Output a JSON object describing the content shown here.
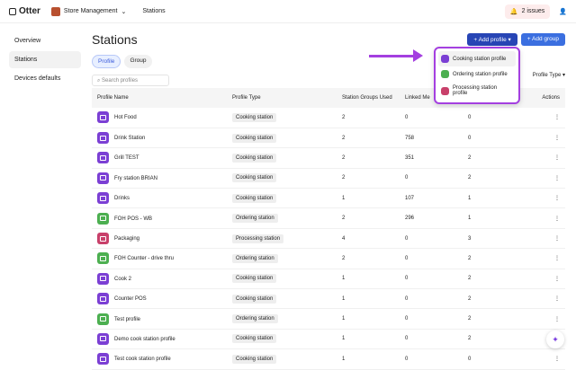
{
  "app": {
    "name": "Otter",
    "store": "Store Management",
    "breadcrumb": "Stations",
    "issues": "2 issues"
  },
  "sidebar": {
    "items": [
      {
        "label": "Overview"
      },
      {
        "label": "Stations"
      },
      {
        "label": "Devices defaults"
      }
    ]
  },
  "page": {
    "title": "Stations",
    "add_profile": "+ Add profile ▾",
    "add_group": "+ Add group",
    "tabs": [
      "Profile",
      "Group"
    ],
    "search_placeholder": "Search profiles",
    "filter": "Profile Type ▾"
  },
  "table": {
    "headers": [
      "Profile Name",
      "Profile Type",
      "Station Groups Used",
      "Linked Me",
      "",
      "Actions"
    ],
    "rows": [
      [
        "Hot Food",
        "Cooking station",
        "2",
        "0",
        "0"
      ],
      [
        "Drink Station",
        "Cooking station",
        "2",
        "758",
        "0"
      ],
      [
        "Grill TEST",
        "Cooking station",
        "2",
        "351",
        "2"
      ],
      [
        "Fry station BRIAN",
        "Cooking station",
        "2",
        "0",
        "2"
      ],
      [
        "Drinks",
        "Cooking station",
        "1",
        "107",
        "1"
      ],
      [
        "FOH POS - WB",
        "Ordering station",
        "2",
        "296",
        "1"
      ],
      [
        "Packaging",
        "Processing station",
        "4",
        "0",
        "3"
      ],
      [
        "FOH Counter - drive thru",
        "Ordering station",
        "2",
        "0",
        "2"
      ],
      [
        "Cook 2",
        "Cooking station",
        "1",
        "0",
        "2"
      ],
      [
        "Counter POS",
        "Cooking station",
        "1",
        "0",
        "2"
      ],
      [
        "Test profile",
        "Ordering station",
        "1",
        "0",
        "2"
      ],
      [
        "Demo cook station profile",
        "Cooking station",
        "1",
        "0",
        "2"
      ],
      [
        "Test cook station profile",
        "Cooking station",
        "1",
        "0",
        "0"
      ]
    ]
  },
  "menu": {
    "items": [
      "Cooking station profile",
      "Ordering station profile",
      "Processing station profile"
    ]
  },
  "colors": {
    "Cooking station": "#7b3fd4",
    "Ordering station": "#4caf50",
    "Processing station": "#c8406a",
    "primary": "#2745b5",
    "accent": "#3b6fe0",
    "highlight": "#a43fe0"
  }
}
